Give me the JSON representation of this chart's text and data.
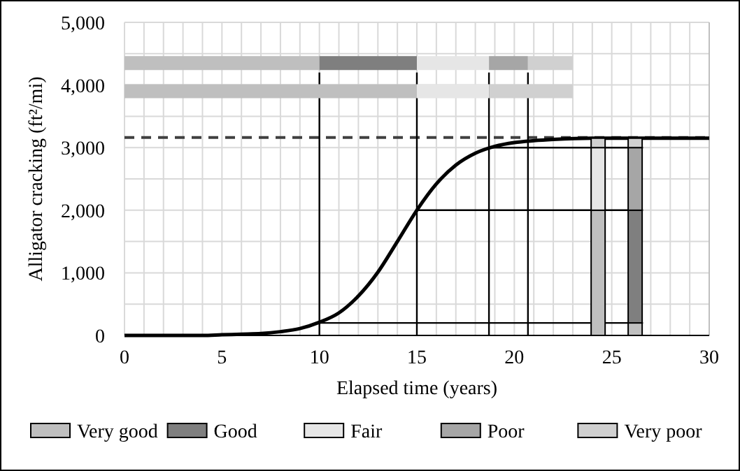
{
  "chart_data": {
    "type": "line",
    "xlabel": "Elapsed time (years)",
    "ylabel": "Alligator cracking (ft²/mi)",
    "xlim": [
      0,
      30
    ],
    "ylim": [
      0,
      5000
    ],
    "xticks": [
      0,
      {
        "value": 1,
        "label": null
      },
      {
        "value": 2,
        "label": null
      },
      {
        "value": 3,
        "label": null
      },
      {
        "value": 4,
        "label": null
      },
      5,
      {
        "value": 6,
        "label": null
      },
      {
        "value": 7,
        "label": null
      },
      {
        "value": 8,
        "label": null
      },
      {
        "value": 9,
        "label": null
      },
      10,
      {
        "value": 11,
        "label": null
      },
      {
        "value": 12,
        "label": null
      },
      {
        "value": 13,
        "label": null
      },
      {
        "value": 14,
        "label": null
      },
      15,
      {
        "value": 16,
        "label": null
      },
      {
        "value": 17,
        "label": null
      },
      {
        "value": 18,
        "label": null
      },
      {
        "value": 19,
        "label": null
      },
      20,
      {
        "value": 21,
        "label": null
      },
      {
        "value": 22,
        "label": null
      },
      {
        "value": 23,
        "label": null
      },
      {
        "value": 24,
        "label": null
      },
      25,
      {
        "value": 26,
        "label": null
      },
      {
        "value": 27,
        "label": null
      },
      {
        "value": 28,
        "label": null
      },
      {
        "value": 29,
        "label": null
      },
      30
    ],
    "yticks": [
      0,
      {
        "value": 500,
        "label": null
      },
      {
        "value": 1000,
        "label": "1,000"
      },
      {
        "value": 1500,
        "label": null
      },
      {
        "value": 2000,
        "label": "2,000"
      },
      {
        "value": 2500,
        "label": null
      },
      {
        "value": 3000,
        "label": "3,000"
      },
      {
        "value": 3500,
        "label": null
      },
      {
        "value": 4000,
        "label": "4,000"
      },
      {
        "value": 4500,
        "label": null
      },
      {
        "value": 5000,
        "label": "5,000"
      }
    ],
    "grid": true,
    "legend": "bottom",
    "ref_lines": [
      {
        "axis": "y",
        "value": 3160,
        "line_style": "dashed",
        "color": "#404040"
      }
    ],
    "series": [
      {
        "color": "#000000",
        "x": [
          0,
          2,
          4,
          5,
          6,
          7,
          8,
          9,
          10,
          11,
          12,
          13,
          14,
          15,
          16,
          17,
          18,
          19,
          20,
          21,
          22,
          24,
          26,
          30
        ],
        "values": [
          0,
          0,
          0,
          10,
          20,
          30,
          60,
          110,
          210,
          360,
          630,
          1010,
          1500,
          2000,
          2420,
          2720,
          2910,
          3020,
          3080,
          3110,
          3130,
          3150,
          3150,
          3150
        ]
      },
      {
        "color": "#000000",
        "x": [
          10,
          26.6
        ],
        "values": [
          200,
          200
        ]
      },
      {
        "color": "#000000",
        "x": [
          15,
          26.6
        ],
        "values": [
          2000,
          2000
        ]
      },
      {
        "color": "#000000",
        "x": [
          18.7,
          26.6
        ],
        "values": [
          3000,
          3000
        ]
      },
      {
        "color": "#000000",
        "x": [
          10,
          10
        ],
        "values": [
          0,
          4200
        ]
      },
      {
        "color": "#000000",
        "x": [
          15,
          15
        ],
        "values": [
          0,
          4200
        ]
      },
      {
        "color": "#000000",
        "x": [
          18.7,
          18.7
        ],
        "values": [
          0,
          4200
        ]
      },
      {
        "color": "#000000",
        "x": [
          20.7,
          20.7
        ],
        "values": [
          0,
          4200
        ]
      },
      {
        "color": "#bfbfbf",
        "x": [
          0,
          10
        ],
        "values": [
          4350,
          4350
        ]
      },
      {
        "color": "#7f7f7f",
        "x": [
          10,
          15
        ],
        "values": [
          4350,
          4350
        ]
      },
      {
        "color": "#e6e6e6",
        "x": [
          15,
          18.7
        ],
        "values": [
          4350,
          4350
        ]
      },
      {
        "color": "#a6a6a6",
        "x": [
          18.7,
          20.7
        ],
        "values": [
          4350,
          4350
        ]
      },
      {
        "color": "#d0d0d0",
        "x": [
          20.7,
          23
        ],
        "values": [
          4350,
          4350
        ]
      },
      {
        "color": "#bfbfbf",
        "x": [
          0,
          15
        ],
        "values": [
          3900,
          3900
        ]
      },
      {
        "color": "#e6e6e6",
        "x": [
          15,
          18.7
        ],
        "values": [
          3900,
          3900
        ]
      },
      {
        "color": "#d0d0d0",
        "x": [
          18.7,
          20.7,
          23
        ],
        "values": [
          3900,
          3900,
          3900
        ]
      },
      {
        "name": "Very good",
        "type": "bar",
        "color": "#bfbfbf",
        "x": [
          24.3,
          26.2
        ],
        "base": [
          0,
          0
        ],
        "values": [
          2000,
          200
        ]
      },
      {
        "name": "Good",
        "type": "bar",
        "color": "#7f7f7f",
        "x": [
          26.2
        ],
        "base": [
          200
        ],
        "values": [
          1800
        ]
      },
      {
        "name": "Fair",
        "type": "bar",
        "color": "#e6e6e6",
        "x": [
          24.3
        ],
        "base": [
          2000
        ],
        "values": [
          1000
        ]
      },
      {
        "name": "Poor",
        "type": "bar",
        "color": "#a6a6a6",
        "x": [
          26.2
        ],
        "base": [
          2000
        ],
        "values": [
          1000
        ]
      },
      {
        "name": "Very poor",
        "type": "bar",
        "color": "#d0d0d0",
        "x": [
          24.3,
          26.2
        ],
        "base": [
          3000,
          3000
        ],
        "values": [
          150,
          150
        ]
      }
    ]
  }
}
